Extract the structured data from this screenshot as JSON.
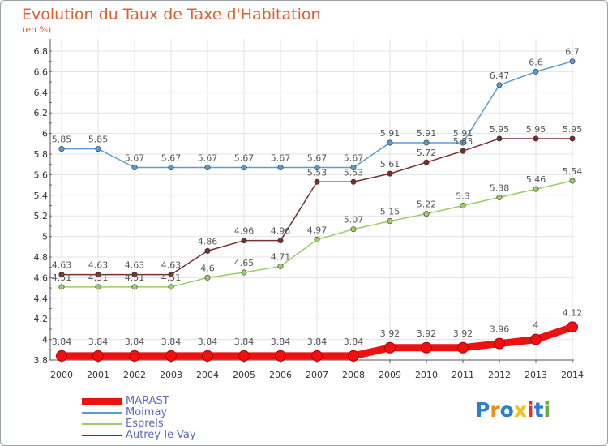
{
  "chart_data": {
    "type": "line",
    "title": "Evolution du Taux de Taxe d'Habitation",
    "subtitle": "(en %)",
    "x": [
      "2000",
      "2001",
      "2002",
      "2003",
      "2004",
      "2005",
      "2006",
      "2007",
      "2008",
      "2009",
      "2010",
      "2011",
      "2012",
      "2013",
      "2014"
    ],
    "yticks": [
      "3.8",
      "4",
      "4.2",
      "4.4",
      "4.6",
      "4.8",
      "5",
      "5.2",
      "5.4",
      "5.6",
      "5.8",
      "6",
      "6.2",
      "6.4",
      "6.6",
      "6.8"
    ],
    "ylim": [
      3.8,
      6.8
    ],
    "grid": true,
    "legend_position": "bottom-left",
    "series": [
      {
        "name": "Moimay",
        "color": "#5b9bd5",
        "values": [
          5.85,
          5.85,
          5.67,
          5.67,
          5.67,
          5.67,
          5.67,
          5.67,
          5.67,
          5.91,
          5.91,
          5.91,
          6.47,
          6.6,
          6.7
        ],
        "labels": [
          "5.85",
          "5.85",
          "5.67",
          "5.67",
          "5.67",
          "5.67",
          "5.67",
          "5.67",
          "5.67",
          "5.91",
          "5.91",
          "5.91",
          "6.47",
          "6.6",
          "6.7"
        ]
      },
      {
        "name": "Autrey-le-Vay",
        "color": "#7a2e2e",
        "values": [
          4.63,
          4.63,
          4.63,
          4.63,
          4.86,
          4.96,
          4.96,
          5.53,
          5.53,
          5.61,
          5.72,
          5.83,
          5.95,
          5.95,
          5.95
        ],
        "labels": [
          "4.63",
          "4.63",
          "4.63",
          "4.63",
          "4.86",
          "4.96",
          "4.96",
          "5.53",
          "5.53",
          "5.61",
          "5.72",
          "5.83",
          "5.95",
          "5.95",
          "5.95"
        ]
      },
      {
        "name": "Esprels",
        "color": "#99cc66",
        "values": [
          4.51,
          4.51,
          4.51,
          4.51,
          4.6,
          4.65,
          4.71,
          4.97,
          5.07,
          5.15,
          5.22,
          5.3,
          5.38,
          5.46,
          5.54
        ],
        "labels": [
          "4.51",
          "4.51",
          "4.51",
          "4.51",
          "4.6",
          "4.65",
          "4.71",
          "4.97",
          "5.07",
          "5.15",
          "5.22",
          "5.3",
          "5.38",
          "5.46",
          "5.54"
        ]
      },
      {
        "name": "MARAST",
        "color": "#ee1111",
        "values": [
          3.84,
          3.84,
          3.84,
          3.84,
          3.84,
          3.84,
          3.84,
          3.84,
          3.84,
          3.92,
          3.92,
          3.92,
          3.96,
          4.0,
          4.12
        ],
        "labels": [
          "3.84",
          "3.84",
          "3.84",
          "3.84",
          "3.84",
          "3.84",
          "3.84",
          "3.84",
          "3.84",
          "3.92",
          "3.92",
          "3.92",
          "3.96",
          "4",
          "4.12"
        ]
      }
    ]
  },
  "legend": {
    "items": [
      {
        "name": "MARAST",
        "color": "#ee1111",
        "thick": true
      },
      {
        "name": "Moimay",
        "color": "#5b9bd5"
      },
      {
        "name": "Esprels",
        "color": "#99cc66"
      },
      {
        "name": "Autrey-le-Vay",
        "color": "#7a2e2e"
      }
    ]
  },
  "logo": {
    "text": "Proxiti",
    "colors": [
      "#2a7fd4",
      "#f08a1c",
      "#2a7fd4",
      "#f0c020",
      "#e03030",
      "#2a7fd4",
      "#60b040"
    ]
  }
}
